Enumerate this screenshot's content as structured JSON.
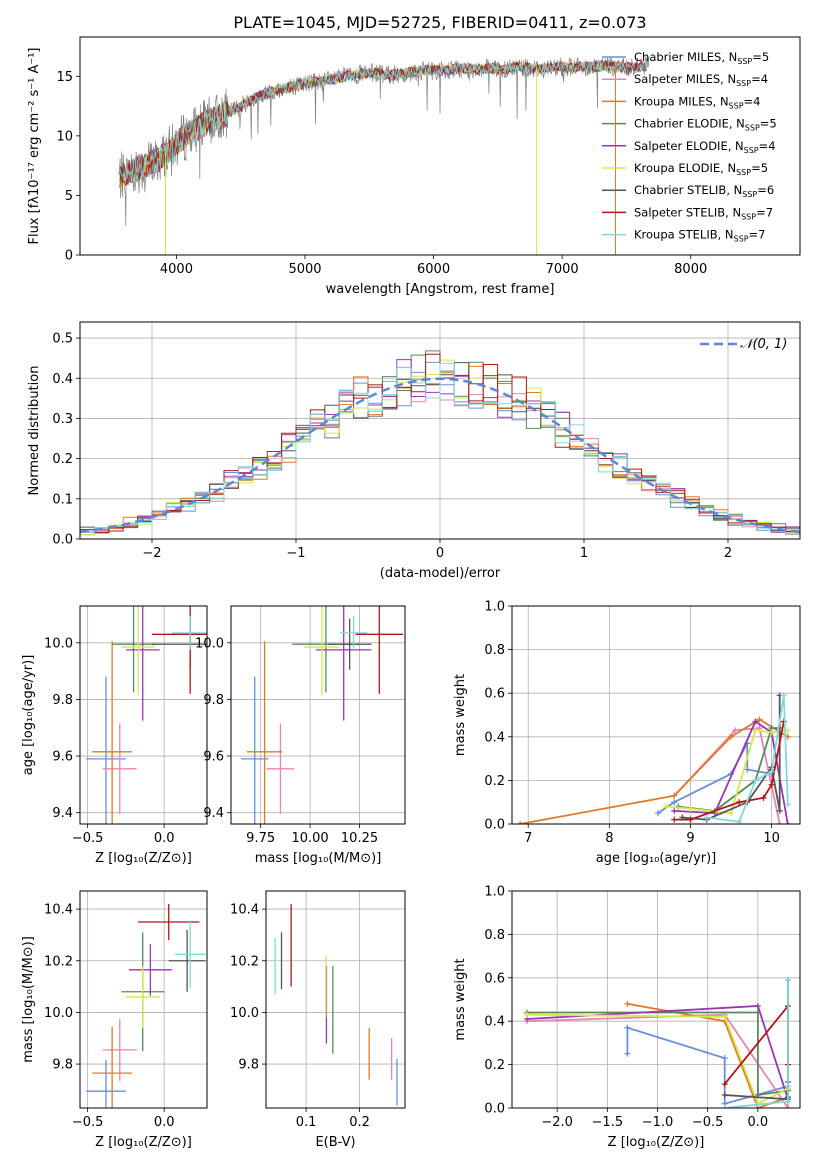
{
  "figure_title": "PLATE=1045, MJD=52725, FIBERID=0411, z=0.073",
  "models": [
    {
      "name": "Chabrier MILES",
      "nssp": "5",
      "color": "#6a8fd8"
    },
    {
      "name": "Salpeter MILES",
      "nssp": "4",
      "color": "#e884b4"
    },
    {
      "name": "Kroupa MILES",
      "nssp": "4",
      "color": "#e07a2a"
    },
    {
      "name": "Chabrier ELODIE",
      "nssp": "5",
      "color": "#5a8a5a"
    },
    {
      "name": "Salpeter ELODIE",
      "nssp": "4",
      "color": "#9a36b0"
    },
    {
      "name": "Kroupa ELODIE",
      "nssp": "5",
      "color": "#d4e84a"
    },
    {
      "name": "Chabrier STELIB",
      "nssp": "6",
      "color": "#555555"
    },
    {
      "name": "Salpeter STELIB",
      "nssp": "7",
      "color": "#b01616"
    },
    {
      "name": "Kroupa STELIB",
      "nssp": "7",
      "color": "#7fd8dc"
    }
  ],
  "nssp_prefix": "N",
  "nssp_sub": "SSP",
  "nssp_eq": "=",
  "chart_data": [
    {
      "id": "spectrum",
      "type": "line",
      "xlabel": "wavelength [Angstrom, rest frame]",
      "ylabel": "Flux [fλ10⁻¹⁷ erg cm⁻² s⁻¹ A⁻¹]",
      "xlim": [
        3250,
        8850
      ],
      "ylim": [
        0,
        18.3
      ],
      "xticks": [
        "4000",
        "5000",
        "6000",
        "7000",
        "8000"
      ],
      "yticks": [
        "0",
        "5",
        "10",
        "15"
      ],
      "data_color": "#808080",
      "continuum": {
        "x": [
          3550,
          3650,
          3750,
          3850,
          3950,
          4050,
          4150,
          4250,
          4350,
          4450,
          4550,
          4650,
          4750,
          4850,
          4950,
          5050,
          5150,
          5250,
          5350,
          5450,
          5550,
          5650,
          5750,
          5850,
          5950,
          6050,
          6150,
          6250,
          6350,
          6450,
          6550,
          6650,
          6750,
          6850,
          6950,
          7050,
          7150,
          7250,
          7350,
          7450,
          7550,
          7650
        ],
        "y": [
          6.5,
          7.0,
          7.5,
          7.9,
          8.8,
          9.8,
          10.6,
          11.2,
          11.7,
          12.2,
          12.8,
          13.4,
          13.7,
          14.0,
          14.3,
          14.5,
          14.6,
          14.8,
          15.1,
          15.2,
          15.3,
          15.1,
          15.2,
          15.4,
          15.5,
          15.5,
          15.6,
          15.6,
          15.6,
          15.7,
          15.5,
          15.8,
          15.7,
          15.6,
          15.8,
          15.8,
          15.8,
          15.8,
          15.9,
          15.8,
          15.7,
          15.9
        ]
      }
    },
    {
      "id": "residuals",
      "type": "histogram",
      "xlabel": "(data-model)/error",
      "ylabel": "Normed distribution",
      "xlim": [
        -2.5,
        2.5
      ],
      "ylim": [
        0,
        0.54
      ],
      "xticks": [
        "−2",
        "−1",
        "0",
        "1",
        "2"
      ],
      "yticks": [
        "0.0",
        "0.1",
        "0.2",
        "0.3",
        "0.4",
        "0.5"
      ],
      "legend": "𝒩(0, 1)",
      "legend_position": "top-right",
      "bins": [
        -2.5,
        2.5,
        50
      ]
    },
    {
      "id": "age_vs_Z",
      "type": "scatter",
      "xlabel": "Z [log₁₀(Z/Z⊙)]",
      "ylabel": "age  [log₁₀(age/yr)]",
      "xlim": [
        -0.55,
        0.28
      ],
      "ylim": [
        9.36,
        10.13
      ],
      "xticks": [
        "−0.5",
        "0.0"
      ],
      "yticks": [
        "9.4",
        "9.6",
        "9.8",
        "10.0"
      ],
      "points": [
        {
          "x": -0.38,
          "y": 9.59,
          "xe": 0.13,
          "ye": 0.29
        },
        {
          "x": -0.29,
          "y": 9.555,
          "xe": 0.11,
          "ye": 0.16
        },
        {
          "x": -0.34,
          "y": 9.615,
          "xe": 0.13,
          "ye": 0.39
        },
        {
          "x": -0.2,
          "y": 9.995,
          "xe": 0.14,
          "ye": 0.17
        },
        {
          "x": -0.14,
          "y": 9.975,
          "xe": 0.11,
          "ye": 0.25
        },
        {
          "x": -0.17,
          "y": 9.985,
          "xe": 0.11,
          "ye": 0.17
        },
        {
          "x": 0.17,
          "y": 9.995,
          "xe": 0.25,
          "ye": 0.09
        },
        {
          "x": 0.17,
          "y": 10.03,
          "xe": 0.25,
          "ye": 0.21
        },
        {
          "x": 0.17,
          "y": 10.035,
          "xe": 0.12,
          "ye": 0.06
        }
      ]
    },
    {
      "id": "age_vs_mass",
      "type": "scatter",
      "xlabel": "mass [log₁₀(M/M⊙)]",
      "ylabel": "",
      "xlim": [
        9.6,
        10.48
      ],
      "ylim": [
        9.36,
        10.13
      ],
      "xticks": [
        "9.75",
        "10.00",
        "10.25"
      ],
      "yticks": [
        "9.4",
        "9.6",
        "9.8",
        "10.0"
      ],
      "points": [
        {
          "x": 9.72,
          "y": 9.59,
          "xe": 0.07,
          "ye": 0.29
        },
        {
          "x": 9.85,
          "y": 9.555,
          "xe": 0.07,
          "ye": 0.16
        },
        {
          "x": 9.77,
          "y": 9.615,
          "xe": 0.09,
          "ye": 0.39
        },
        {
          "x": 10.08,
          "y": 9.995,
          "xe": 0.17,
          "ye": 0.17
        },
        {
          "x": 10.17,
          "y": 9.975,
          "xe": 0.14,
          "ye": 0.25
        },
        {
          "x": 10.06,
          "y": 9.985,
          "xe": 0.09,
          "ye": 0.17
        },
        {
          "x": 10.2,
          "y": 9.995,
          "xe": 0.11,
          "ye": 0.09
        },
        {
          "x": 10.35,
          "y": 10.03,
          "xe": 0.12,
          "ye": 0.21
        },
        {
          "x": 10.22,
          "y": 10.035,
          "xe": 0.07,
          "ye": 0.06
        }
      ]
    },
    {
      "id": "weight_vs_age",
      "type": "line",
      "xlabel": "age  [log₁₀(age/yr)]",
      "ylabel": "mass weight",
      "xlim": [
        6.8,
        10.35
      ],
      "ylim": [
        0,
        1.0
      ],
      "xticks": [
        "7",
        "8",
        "9",
        "10"
      ],
      "yticks": [
        "0.0",
        "0.2",
        "0.4",
        "0.6",
        "0.8",
        "1.0"
      ],
      "series": [
        {
          "x": [
            8.6,
            8.8,
            9.5,
            9.7,
            9.7,
            10.0
          ],
          "y": [
            0.05,
            0.1,
            0.23,
            0.37,
            0.25,
            0.23
          ]
        },
        {
          "x": [
            8.8,
            9.55,
            9.85,
            10.1
          ],
          "y": [
            0.13,
            0.43,
            0.44,
            0.0
          ]
        },
        {
          "x": [
            6.9,
            8.8,
            9.5,
            9.85,
            10.2
          ],
          "y": [
            0.0,
            0.13,
            0.4,
            0.48,
            0.4
          ]
        },
        {
          "x": [
            8.85,
            9.3,
            9.8,
            10.0,
            10.1
          ],
          "y": [
            0.08,
            0.06,
            0.2,
            0.44,
            0.44
          ]
        },
        {
          "x": [
            8.8,
            9.3,
            9.8,
            10.0,
            10.2
          ],
          "y": [
            0.06,
            0.05,
            0.47,
            0.42,
            0.0
          ]
        },
        {
          "x": [
            8.7,
            9.0,
            9.5,
            9.8,
            10.0,
            10.2
          ],
          "y": [
            0.08,
            0.07,
            0.05,
            0.43,
            0.42,
            0.43
          ]
        },
        {
          "x": [
            8.9,
            9.2,
            9.7,
            10.0,
            10.1,
            10.1
          ],
          "y": [
            0.03,
            0.02,
            0.1,
            0.26,
            0.06,
            0.59
          ]
        },
        {
          "x": [
            8.8,
            9.0,
            9.6,
            9.9,
            10.0,
            10.15
          ],
          "y": [
            0.02,
            0.02,
            0.1,
            0.12,
            0.18,
            0.47
          ]
        },
        {
          "x": [
            9.2,
            9.6,
            9.8,
            10.0,
            10.15,
            10.2
          ],
          "y": [
            0.03,
            0.01,
            0.2,
            0.24,
            0.59,
            0.09
          ]
        }
      ]
    },
    {
      "id": "mass_vs_Z",
      "type": "scatter",
      "xlabel": "Z [log₁₀(Z/Z⊙)]",
      "ylabel": "mass [log₁₀(M/M⊙)]",
      "xlim": [
        -0.55,
        0.28
      ],
      "ylim": [
        9.63,
        10.47
      ],
      "xticks": [
        "−0.5",
        "0.0"
      ],
      "yticks": [
        "9.8",
        "10.0",
        "10.2",
        "10.4"
      ],
      "points": [
        {
          "x": -0.38,
          "y": 9.695,
          "xe": 0.13,
          "ye": 0.12
        },
        {
          "x": -0.29,
          "y": 9.855,
          "xe": 0.11,
          "ye": 0.12
        },
        {
          "x": -0.34,
          "y": 9.765,
          "xe": 0.13,
          "ye": 0.18
        },
        {
          "x": -0.14,
          "y": 10.08,
          "xe": 0.14,
          "ye": 0.23
        },
        {
          "x": -0.09,
          "y": 10.165,
          "xe": 0.14,
          "ye": 0.1
        },
        {
          "x": -0.14,
          "y": 10.06,
          "xe": 0.11,
          "ye": 0.12
        },
        {
          "x": 0.15,
          "y": 10.2,
          "xe": 0.12,
          "ye": 0.12
        },
        {
          "x": 0.03,
          "y": 10.35,
          "xe": 0.2,
          "ye": 0.07
        },
        {
          "x": 0.17,
          "y": 10.225,
          "xe": 0.1,
          "ye": 0.13
        }
      ]
    },
    {
      "id": "mass_vs_ebv",
      "type": "scatter",
      "xlabel": "E(B-V)",
      "ylabel": "",
      "xlim": [
        0.025,
        0.285
      ],
      "ylim": [
        9.63,
        10.47
      ],
      "xticks": [
        "0.1",
        "0.2"
      ],
      "yticks": [
        "9.8",
        "10.0",
        "10.2",
        "10.4"
      ],
      "points": [
        {
          "x": 0.27,
          "y": 9.73,
          "ye": 0.09
        },
        {
          "x": 0.26,
          "y": 9.82,
          "ye": 0.08
        },
        {
          "x": 0.218,
          "y": 9.84,
          "ye": 0.1
        },
        {
          "x": 0.15,
          "y": 10.01,
          "ye": 0.17
        },
        {
          "x": 0.138,
          "y": 10.03,
          "ye": 0.15
        },
        {
          "x": 0.137,
          "y": 10.1,
          "ye": 0.12
        },
        {
          "x": 0.054,
          "y": 10.2,
          "ye": 0.11
        },
        {
          "x": 0.072,
          "y": 10.26,
          "ye": 0.16
        },
        {
          "x": 0.042,
          "y": 10.18,
          "ye": 0.11
        }
      ]
    },
    {
      "id": "weight_vs_Z",
      "type": "line",
      "xlabel": "Z [log₁₀(Z/Z⊙)]",
      "ylabel": "mass weight",
      "xlim": [
        -2.45,
        0.42
      ],
      "ylim": [
        0,
        1.0
      ],
      "xticks": [
        "−2.0",
        "−1.5",
        "−1.0",
        "−0.5",
        "0.0"
      ],
      "yticks": [
        "0.0",
        "0.2",
        "0.4",
        "0.6",
        "0.8",
        "1.0"
      ],
      "series": [
        {
          "x": [
            -1.3,
            -1.3,
            -0.33,
            -0.33,
            0.3
          ],
          "y": [
            0.25,
            0.37,
            0.23,
            0.02,
            0.1
          ]
        },
        {
          "x": [
            -2.3,
            -0.33,
            0.3,
            0.3
          ],
          "y": [
            0.4,
            0.43,
            0.0,
            0.1
          ]
        },
        {
          "x": [
            -1.3,
            -0.33,
            0.0,
            0.3
          ],
          "y": [
            0.48,
            0.4,
            0.0,
            0.05
          ]
        },
        {
          "x": [
            -2.3,
            0.0,
            0.0,
            0.3
          ],
          "y": [
            0.44,
            0.44,
            0.06,
            0.08
          ]
        },
        {
          "x": [
            -2.3,
            0.0,
            0.3,
            0.3
          ],
          "y": [
            0.41,
            0.47,
            0.04,
            0.12
          ]
        },
        {
          "x": [
            -2.3,
            -0.33,
            0.0,
            0.3
          ],
          "y": [
            0.43,
            0.42,
            0.02,
            0.09
          ]
        },
        {
          "x": [
            -0.33,
            0.3,
            0.3,
            0.3
          ],
          "y": [
            0.06,
            0.04,
            0.59,
            0.05
          ]
        },
        {
          "x": [
            -0.33,
            0.3,
            0.3
          ],
          "y": [
            0.11,
            0.47,
            0.2
          ]
        },
        {
          "x": [
            -0.33,
            0.3,
            0.3,
            0.3
          ],
          "y": [
            0.0,
            0.03,
            0.59,
            0.1
          ]
        }
      ]
    }
  ]
}
